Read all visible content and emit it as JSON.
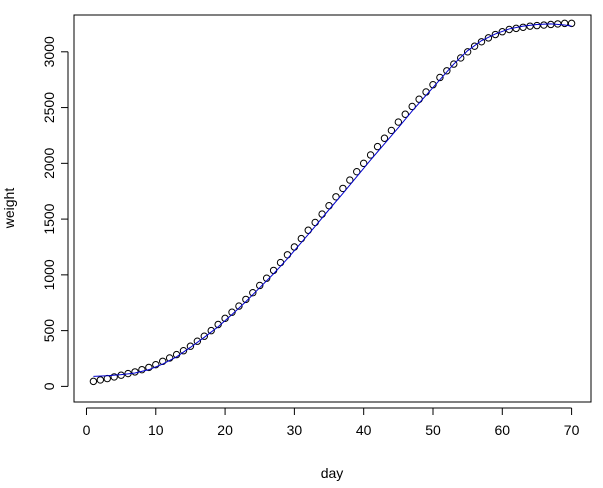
{
  "chart_data": {
    "type": "scatter",
    "title": "",
    "xlabel": "day",
    "ylabel": "weight",
    "xlim": [
      -1.8,
      72.8
    ],
    "ylim": [
      -140,
      3330
    ],
    "x_ticks": [
      0,
      10,
      20,
      30,
      40,
      50,
      60,
      70
    ],
    "y_ticks": [
      0,
      500,
      1000,
      1500,
      2000,
      2500,
      3000
    ],
    "grid": false,
    "legend": "none",
    "series": [
      {
        "kind": "points",
        "marker": "open-circle",
        "color": "#000000",
        "x": [
          1,
          2,
          3,
          4,
          5,
          6,
          7,
          8,
          9,
          10,
          11,
          12,
          13,
          14,
          15,
          16,
          17,
          18,
          19,
          20,
          21,
          22,
          23,
          24,
          25,
          26,
          27,
          28,
          29,
          30,
          31,
          32,
          33,
          34,
          35,
          36,
          37,
          38,
          39,
          40,
          41,
          42,
          43,
          44,
          45,
          46,
          47,
          48,
          49,
          50,
          51,
          52,
          53,
          54,
          55,
          56,
          57,
          58,
          59,
          60,
          61,
          62,
          63,
          64,
          65,
          66,
          67,
          68,
          69,
          70
        ],
        "y": [
          45,
          58,
          70,
          85,
          100,
          115,
          130,
          150,
          170,
          195,
          225,
          255,
          285,
          320,
          360,
          405,
          450,
          500,
          555,
          610,
          665,
          720,
          780,
          840,
          905,
          970,
          1040,
          1110,
          1180,
          1250,
          1325,
          1400,
          1470,
          1545,
          1620,
          1700,
          1775,
          1850,
          1925,
          2000,
          2075,
          2150,
          2225,
          2295,
          2370,
          2440,
          2510,
          2575,
          2640,
          2705,
          2770,
          2830,
          2890,
          2945,
          3000,
          3050,
          3090,
          3125,
          3155,
          3180,
          3200,
          3210,
          3220,
          3230,
          3235,
          3240,
          3245,
          3250,
          3255,
          3255
        ]
      },
      {
        "kind": "fitted-line",
        "color": "#0000cc",
        "x": [
          1,
          3,
          5,
          7,
          9,
          11,
          13,
          15,
          17,
          19,
          21,
          23,
          25,
          27,
          29,
          31,
          33,
          35,
          37,
          39,
          41,
          43,
          45,
          47,
          49,
          51,
          53,
          55,
          57,
          59,
          61,
          63,
          65,
          67,
          69,
          70
        ],
        "y": [
          90,
          95,
          105,
          120,
          150,
          200,
          265,
          350,
          440,
          535,
          645,
          760,
          885,
          1010,
          1145,
          1290,
          1435,
          1585,
          1730,
          1880,
          2030,
          2175,
          2320,
          2470,
          2610,
          2750,
          2890,
          3010,
          3100,
          3160,
          3205,
          3230,
          3245,
          3250,
          3240,
          3230
        ]
      }
    ]
  },
  "colors": {
    "points": "#000000",
    "line": "#0000cc",
    "frame": "#000000",
    "background": "#ffffff"
  }
}
